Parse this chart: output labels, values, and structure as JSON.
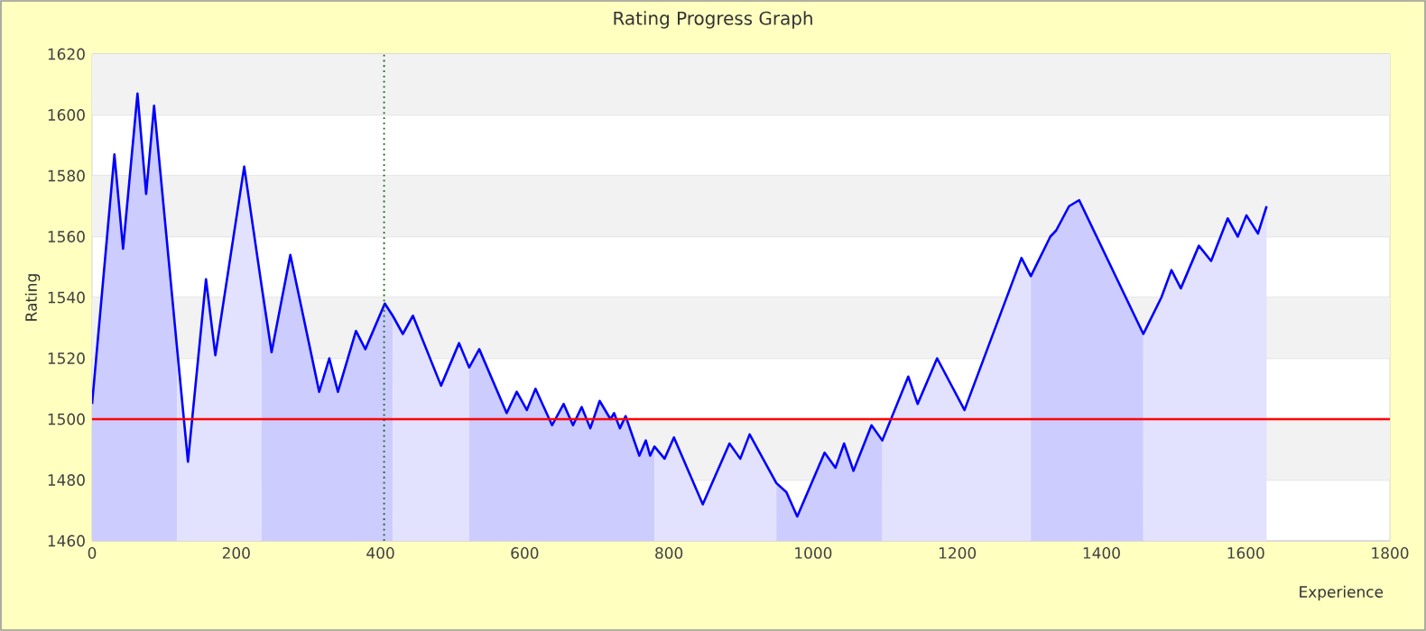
{
  "chart_data": {
    "type": "line",
    "title": "Rating Progress Graph",
    "xlabel": "Experience",
    "ylabel": "Rating",
    "xlim": [
      0,
      1800
    ],
    "xticks": [
      0,
      200,
      400,
      600,
      800,
      1000,
      1200,
      1400,
      1600,
      1800
    ],
    "ylim": [
      1460,
      1620
    ],
    "yticks": [
      1460,
      1480,
      1500,
      1520,
      1540,
      1560,
      1580,
      1600,
      1620
    ],
    "grid": "y",
    "ref_lines": [
      {
        "axis": "y",
        "value": 1500,
        "color": "#ff0000",
        "line_style": "solid"
      },
      {
        "axis": "x",
        "value": 405,
        "color": "#006600",
        "line_style": "dotted"
      }
    ],
    "series": [
      {
        "color": "#0000ff",
        "x": [
          0,
          31,
          43,
          63,
          75,
          86,
          118,
          133,
          158,
          171,
          211,
          235,
          249,
          275,
          315,
          329,
          341,
          366,
          379,
          406,
          417,
          431,
          445,
          484,
          509,
          523,
          537,
          575,
          589,
          603,
          615,
          638,
          654,
          667,
          679,
          691,
          704,
          719,
          724,
          732,
          740,
          759,
          768,
          774,
          780,
          794,
          807,
          847,
          884,
          899,
          912,
          949,
          963,
          978,
          1016,
          1031,
          1043,
          1056,
          1081,
          1096,
          1132,
          1145,
          1172,
          1210,
          1289,
          1302,
          1329,
          1337,
          1355,
          1369,
          1458,
          1483,
          1497,
          1510,
          1535,
          1552,
          1575,
          1589,
          1601,
          1617,
          1629
        ],
        "values": [
          1505,
          1587,
          1556,
          1607,
          1574,
          1603,
          1523,
          1486,
          1546,
          1521,
          1583,
          1544,
          1522,
          1554,
          1509,
          1520,
          1509,
          1529,
          1523,
          1538,
          1534,
          1528,
          1534,
          1511,
          1525,
          1517,
          1523,
          1502,
          1509,
          1503,
          1510,
          1498,
          1505,
          1498,
          1504,
          1497,
          1506,
          1500,
          1502,
          1497,
          1501,
          1488,
          1493,
          1488,
          1491,
          1487,
          1494,
          1472,
          1492,
          1487,
          1495,
          1479,
          1476,
          1468,
          1489,
          1484,
          1492,
          1483,
          1498,
          1493,
          1514,
          1505,
          1520,
          1503,
          1553,
          1547,
          1560,
          1562,
          1570,
          1572,
          1528,
          1540,
          1549,
          1543,
          1557,
          1552,
          1566,
          1560,
          1567,
          1561,
          1570
        ]
      },
      {
        "type": "area",
        "color": "#ccccff",
        "x": [
          0,
          31,
          43,
          63,
          75,
          86,
          118
        ],
        "values": [
          1505,
          1587,
          1556,
          1607,
          1574,
          1603,
          1523
        ]
      },
      {
        "type": "area",
        "color": "#e2e2ff",
        "x": [
          118,
          133,
          158,
          171,
          211,
          235
        ],
        "values": [
          1523,
          1486,
          1546,
          1521,
          1583,
          1544
        ]
      },
      {
        "type": "area",
        "color": "#ccccff",
        "x": [
          235,
          249,
          275,
          315,
          329,
          341,
          366,
          379,
          406,
          417
        ],
        "values": [
          1544,
          1522,
          1554,
          1509,
          1520,
          1509,
          1529,
          1523,
          1538,
          1534
        ]
      },
      {
        "type": "area",
        "color": "#e2e2ff",
        "x": [
          417,
          431,
          445,
          484,
          509,
          523
        ],
        "values": [
          1534,
          1528,
          1534,
          1511,
          1525,
          1517
        ]
      },
      {
        "type": "area",
        "color": "#ccccff",
        "x": [
          523,
          537,
          575,
          589,
          603,
          615,
          638,
          654,
          667,
          679,
          691,
          704,
          719,
          724,
          732,
          740,
          759,
          768,
          774,
          780
        ],
        "values": [
          1517,
          1523,
          1502,
          1509,
          1503,
          1510,
          1498,
          1505,
          1498,
          1504,
          1497,
          1506,
          1500,
          1502,
          1497,
          1501,
          1488,
          1493,
          1488,
          1491
        ]
      },
      {
        "type": "area",
        "color": "#e2e2ff",
        "x": [
          780,
          794,
          807,
          847,
          884,
          899,
          912,
          949
        ],
        "values": [
          1491,
          1487,
          1494,
          1472,
          1492,
          1487,
          1495,
          1479
        ]
      },
      {
        "type": "area",
        "color": "#ccccff",
        "x": [
          949,
          963,
          978,
          1016,
          1031,
          1043,
          1056,
          1081,
          1096
        ],
        "values": [
          1479,
          1476,
          1468,
          1489,
          1484,
          1492,
          1483,
          1498,
          1493
        ]
      },
      {
        "type": "area",
        "color": "#e2e2ff",
        "x": [
          1096,
          1132,
          1145,
          1172,
          1210,
          1289,
          1302
        ],
        "values": [
          1493,
          1514,
          1505,
          1520,
          1503,
          1553,
          1547
        ]
      },
      {
        "type": "area",
        "color": "#ccccff",
        "x": [
          1302,
          1329,
          1337,
          1355,
          1369,
          1458
        ],
        "values": [
          1547,
          1560,
          1562,
          1570,
          1572,
          1528
        ]
      },
      {
        "type": "area",
        "color": "#e2e2ff",
        "x": [
          1458,
          1483,
          1497,
          1510,
          1535,
          1552,
          1575,
          1589,
          1601,
          1617,
          1629
        ],
        "values": [
          1528,
          1540,
          1549,
          1543,
          1557,
          1552,
          1566,
          1560,
          1567,
          1561,
          1570
        ]
      }
    ]
  }
}
